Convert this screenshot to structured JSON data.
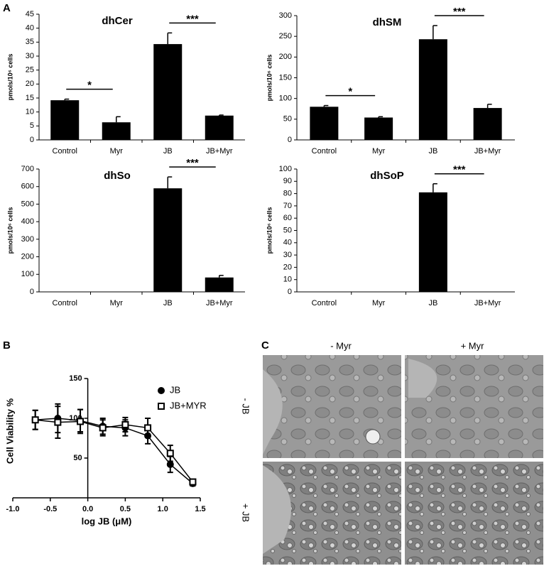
{
  "panel_labels": [
    "A",
    "B",
    "C"
  ],
  "images": {
    "columns": [
      "- Myr",
      "+ Myr"
    ],
    "rows": [
      "- JB",
      "+ JB"
    ]
  },
  "chart_data": [
    {
      "type": "bar",
      "title": "dhCer",
      "y_label": "pmols/10⁶ cells",
      "categories": [
        "Control",
        "Myr",
        "JB",
        "JB+Myr"
      ],
      "values": [
        14.2,
        6.3,
        34.3,
        8.7
      ],
      "errors": [
        0.4,
        2.0,
        4.0,
        0.2
      ],
      "color": "#000000",
      "ylim": [
        0,
        45
      ],
      "yticks": [
        0,
        5,
        10,
        15,
        20,
        25,
        30,
        35,
        40,
        45
      ],
      "significance": [
        "*",
        "***"
      ]
    },
    {
      "type": "bar",
      "title": "dhSM",
      "y_label": "pmols/10⁶ cells",
      "categories": [
        "Control",
        "Myr",
        "JB",
        "JB+Myr"
      ],
      "values": [
        80,
        54,
        243,
        77
      ],
      "errors": [
        3,
        2,
        33,
        9
      ],
      "color": "#000000",
      "ylim": [
        0,
        300
      ],
      "yticks": [
        0,
        50,
        100,
        150,
        200,
        250,
        300
      ],
      "significance": [
        "*",
        "***"
      ]
    },
    {
      "type": "bar",
      "title": "dhSo",
      "y_label": "pmols/10⁶ cells",
      "categories": [
        "Control",
        "Myr",
        "JB",
        "JB+Myr"
      ],
      "values": [
        0,
        0,
        590,
        82
      ],
      "errors": [
        0,
        0,
        65,
        12
      ],
      "color": "#000000",
      "ylim": [
        0,
        700
      ],
      "yticks": [
        0,
        100,
        200,
        300,
        400,
        500,
        600,
        700
      ],
      "significance": [
        "***"
      ]
    },
    {
      "type": "bar",
      "title": "dhSoP",
      "y_label": "pmols/10⁶ cells",
      "categories": [
        "Control",
        "Myr",
        "JB",
        "JB+Myr"
      ],
      "values": [
        0,
        0,
        81,
        0
      ],
      "errors": [
        0,
        0,
        7,
        0
      ],
      "color": "#000000",
      "ylim": [
        0,
        100
      ],
      "yticks": [
        0,
        10,
        20,
        30,
        40,
        50,
        60,
        70,
        80,
        90,
        100
      ],
      "significance": [
        "***"
      ]
    },
    {
      "type": "scatter",
      "x_label": "log JB (μM)",
      "y_label": "Cell Viability %",
      "x": [
        -0.7,
        -0.4,
        -0.1,
        0.2,
        0.5,
        0.8,
        1.1,
        1.4
      ],
      "series": [
        {
          "name": "JB",
          "color": "#000000",
          "marker": "circle",
          "filled": true,
          "values": [
            98,
            100,
            97,
            90,
            88,
            78,
            42,
            18
          ],
          "errors": [
            12,
            18,
            14,
            10,
            10,
            10,
            10,
            3
          ]
        },
        {
          "name": "JB+MYR",
          "color": "#000000",
          "marker": "square",
          "filled": false,
          "values": [
            98,
            95,
            96,
            88,
            92,
            88,
            56,
            20
          ],
          "errors": [
            12,
            20,
            15,
            10,
            9,
            12,
            10,
            3
          ]
        }
      ],
      "xlim": [
        -1,
        1.5
      ],
      "ylim": [
        0,
        150
      ],
      "xticks": [
        {
          "value": -1,
          "label": "-1.0"
        },
        {
          "value": -0.5,
          "label": "-0.5"
        },
        {
          "value": 0,
          "label": "0.0"
        },
        {
          "value": 0.5,
          "label": "0.5"
        },
        {
          "value": 1,
          "label": "1.0"
        },
        1.5
      ],
      "yticks": [
        50,
        100,
        150
      ],
      "legend": "upper right"
    }
  ]
}
